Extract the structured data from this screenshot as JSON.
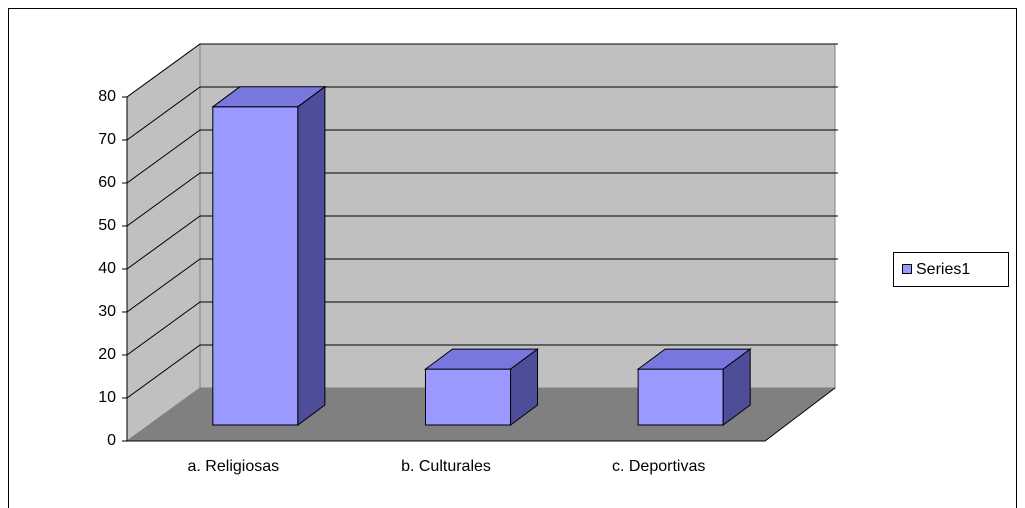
{
  "chart_data": {
    "type": "bar3d",
    "categories": [
      "a. Religiosas",
      "b. Culturales",
      "c. Deportivas"
    ],
    "series": [
      {
        "name": "Series1",
        "color": "#9999ff",
        "values": [
          74,
          13,
          13
        ]
      }
    ],
    "ylim": [
      0,
      80
    ],
    "yticks": [
      0,
      10,
      20,
      30,
      40,
      50,
      60,
      70,
      80
    ],
    "grid": true,
    "legend": "right"
  }
}
